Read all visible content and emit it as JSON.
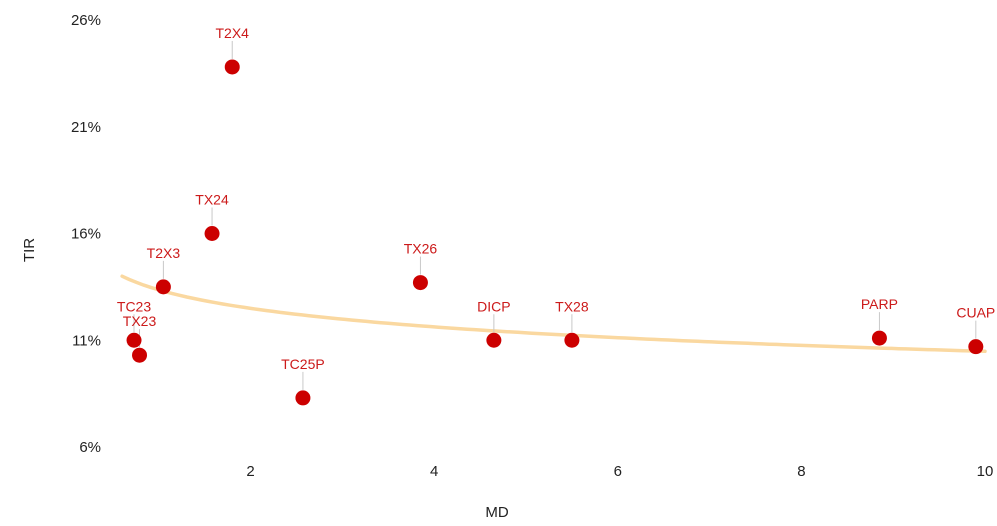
{
  "chart_data": {
    "type": "scatter",
    "title": "",
    "xlabel": "MD",
    "ylabel": "TIR",
    "xlim": [
      0.6,
      10
    ],
    "ylim": [
      6,
      26
    ],
    "x_ticks": [
      2,
      4,
      6,
      8,
      10
    ],
    "x_tick_labels": [
      "2",
      "4",
      "6",
      "8",
      "10"
    ],
    "y_ticks": [
      6,
      11,
      16,
      21,
      26
    ],
    "y_tick_labels": [
      "6%",
      "11%",
      "16%",
      "21%",
      "26%"
    ],
    "grid": false,
    "legend": false,
    "colors": {
      "points": "#cc0000",
      "labels": "#cc1a1a",
      "trendline": "#fad8a0",
      "leader": "#c8c8c8"
    },
    "points": [
      {
        "label": "T2X4",
        "x": 1.8,
        "y": 23.8
      },
      {
        "label": "TX24",
        "x": 1.58,
        "y": 16.0
      },
      {
        "label": "T2X3",
        "x": 1.05,
        "y": 13.5
      },
      {
        "label": "TC23",
        "x": 0.73,
        "y": 11.0
      },
      {
        "label": "TX23",
        "x": 0.79,
        "y": 10.3
      },
      {
        "label": "TC25P",
        "x": 2.57,
        "y": 8.3
      },
      {
        "label": "TX26",
        "x": 3.85,
        "y": 13.7
      },
      {
        "label": "DICP",
        "x": 4.65,
        "y": 11.0
      },
      {
        "label": "TX28",
        "x": 5.5,
        "y": 11.0
      },
      {
        "label": "PARP",
        "x": 8.85,
        "y": 11.1
      },
      {
        "label": "CUAP",
        "x": 9.9,
        "y": 10.7
      }
    ],
    "trendline": {
      "type": "log",
      "a": 13.36,
      "b": -1.25
    }
  }
}
